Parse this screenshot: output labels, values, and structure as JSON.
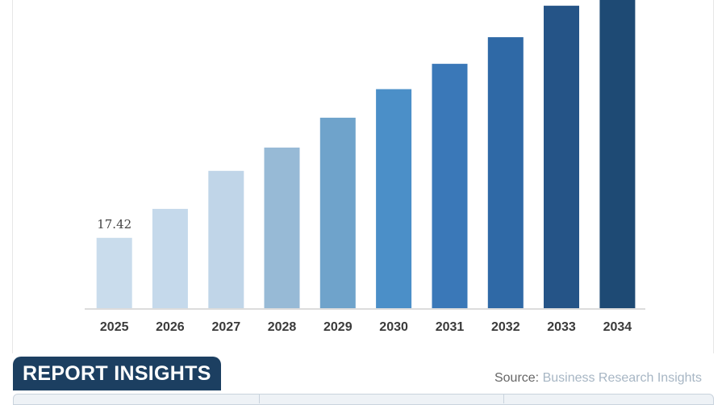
{
  "chart_data": {
    "type": "bar",
    "title": "",
    "xlabel": "",
    "ylabel": "",
    "categories": [
      "2025",
      "2026",
      "2027",
      "2028",
      "2029",
      "2030",
      "2031",
      "2032",
      "2033",
      "2034"
    ],
    "values": [
      17.42,
      24.5,
      33.8,
      39.5,
      46.8,
      53.8,
      60.0,
      66.5,
      74.2,
      76.0
    ],
    "ylim": [
      0,
      76.0
    ],
    "data_labels": [
      {
        "category": "2025",
        "text": "17.42"
      }
    ],
    "colors": [
      "#c9dcec",
      "#c5d9eb",
      "#c0d5e8",
      "#97bad6",
      "#6fa3cb",
      "#4b8fc8",
      "#3a78b8",
      "#2f69a6",
      "#255487",
      "#1e4a74"
    ],
    "grid": false,
    "legend": "none"
  },
  "footer": {
    "tab_label": "REPORT INSIGHTS",
    "source_prefix": "Source: ",
    "source_name": "Business Research Insights"
  }
}
